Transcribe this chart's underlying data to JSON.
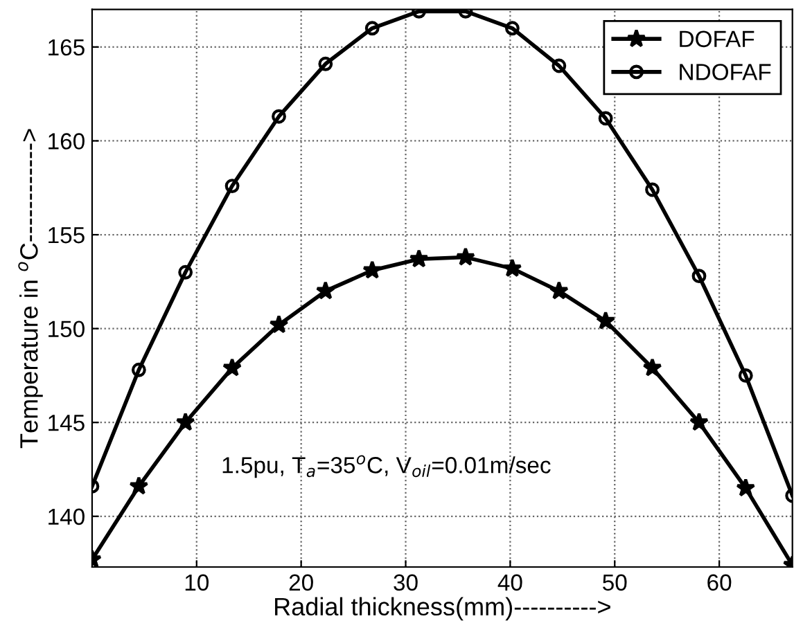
{
  "chart_data": {
    "type": "line",
    "xlabel": "Radial thickness(mm)---------->",
    "ylabel": "Temperature in $^{o}$C------------>",
    "x": [
      0,
      4.47,
      8.93,
      13.4,
      17.87,
      22.33,
      26.8,
      31.27,
      35.73,
      40.2,
      44.67,
      49.13,
      53.6,
      58.07,
      62.53,
      67
    ],
    "series": [
      {
        "name": "DOFAF",
        "color": "#000000",
        "marker": "star",
        "values": [
          137.7,
          141.6,
          145.0,
          147.9,
          150.2,
          152.0,
          153.1,
          153.7,
          153.8,
          153.2,
          152.0,
          150.4,
          147.9,
          145.0,
          141.5,
          137.4
        ]
      },
      {
        "name": "NDOFAF",
        "color": "#000000",
        "marker": "circle",
        "values": [
          141.6,
          147.8,
          153.0,
          157.6,
          161.3,
          164.1,
          166.0,
          166.9,
          166.9,
          166.0,
          164.0,
          161.2,
          157.4,
          152.8,
          147.5,
          141.1
        ]
      }
    ],
    "xlim": [
      0,
      67
    ],
    "ylim": [
      137.3,
      167
    ],
    "xticks": [
      10,
      20,
      30,
      40,
      50,
      60
    ],
    "yticks": [
      140,
      145,
      150,
      155,
      160,
      165
    ],
    "grid": true,
    "legend": "top right",
    "line_style": "solid",
    "annotations": [
      "1.5pu, T$_{a}$=35$^{o}$C, V$_{oil}$=0.01m/sec"
    ]
  }
}
